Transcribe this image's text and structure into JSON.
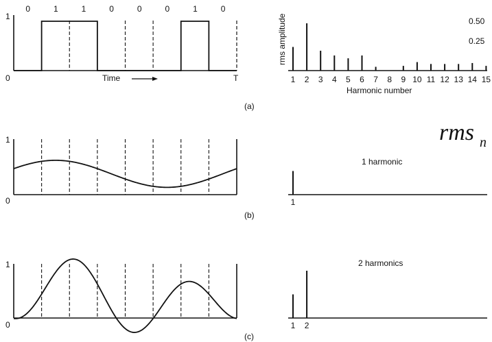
{
  "panel_a": {
    "bits": [
      "0",
      "1",
      "1",
      "0",
      "0",
      "0",
      "1",
      "0"
    ],
    "y_top_label": "1",
    "y_zero_label": "0",
    "x_end_label": "T",
    "time_label": "Time",
    "caption": "(a)"
  },
  "spectrum_a": {
    "ylabel": "rms amplitude",
    "tick_upper": "0.50",
    "tick_lower": "0.25",
    "xlabel": "Harmonic number",
    "harmonic_labels": [
      "1",
      "2",
      "3",
      "4",
      "5",
      "6",
      "7",
      "8",
      "9",
      "10",
      "11",
      "12",
      "13",
      "14",
      "15"
    ],
    "amplitudes": [
      0.25,
      0.5,
      0.21,
      0.16,
      0.13,
      0.16,
      0.04,
      0.0,
      0.05,
      0.09,
      0.07,
      0.07,
      0.07,
      0.08,
      0.05
    ]
  },
  "rms_heading": {
    "main": "rms",
    "sub": "n"
  },
  "panel_b": {
    "y_top_label": "1",
    "y_zero_label": "0",
    "caption": "(b)",
    "spectrum_title": "1 harmonic",
    "spectrum_labels": [
      "1"
    ],
    "spectrum_amplitudes": [
      0.25
    ]
  },
  "panel_c": {
    "y_top_label": "1",
    "y_zero_label": "0",
    "caption": "(c)",
    "spectrum_title": "2 harmonics",
    "spectrum_labels": [
      "1",
      "2"
    ],
    "spectrum_amplitudes": [
      0.25,
      0.5
    ]
  }
}
